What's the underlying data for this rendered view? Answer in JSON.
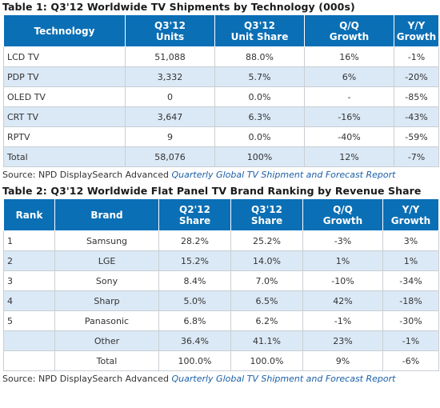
{
  "table1": {
    "title": "Table 1: Q3'12 Worldwide TV Shipments by Technology (000s)",
    "headers": [
      [
        "Technology"
      ],
      [
        "Q3'12",
        "Units"
      ],
      [
        "Q3'12",
        "Unit Share"
      ],
      [
        "Q/Q",
        "Growth"
      ],
      [
        "Y/Y",
        "Growth"
      ]
    ],
    "rows": [
      [
        "LCD TV",
        "51,088",
        "88.0%",
        "16%",
        "-1%"
      ],
      [
        "PDP TV",
        "3,332",
        "5.7%",
        "6%",
        "-20%"
      ],
      [
        "OLED TV",
        "0",
        "0.0%",
        "-",
        "-85%"
      ],
      [
        "CRT TV",
        "3,647",
        "6.3%",
        "-16%",
        "-43%"
      ],
      [
        "RPTV",
        "9",
        "0.0%",
        "-40%",
        "-59%"
      ],
      [
        "Total",
        "58,076",
        "100%",
        "12%",
        "-7%"
      ]
    ],
    "source_prefix": "Source: NPD DisplaySearch Advanced ",
    "source_report": "Quarterly Global TV Shipment and Forecast Report"
  },
  "table2": {
    "title": "Table 2: Q3'12 Worldwide Flat Panel TV Brand Ranking by Revenue Share",
    "headers": [
      [
        "Rank"
      ],
      [
        "Brand"
      ],
      [
        "Q2'12",
        "Share"
      ],
      [
        "Q3'12",
        "Share"
      ],
      [
        "Q/Q",
        "Growth"
      ],
      [
        "Y/Y",
        "Growth"
      ]
    ],
    "rows": [
      [
        "1",
        "Samsung",
        "28.2%",
        "25.2%",
        "-3%",
        "3%"
      ],
      [
        "2",
        "LGE",
        "15.2%",
        "14.0%",
        "1%",
        "1%"
      ],
      [
        "3",
        "Sony",
        "8.4%",
        "7.0%",
        "-10%",
        "-34%"
      ],
      [
        "4",
        "Sharp",
        "5.0%",
        "6.5%",
        "42%",
        "-18%"
      ],
      [
        "5",
        "Panasonic",
        "6.8%",
        "6.2%",
        "-1%",
        "-30%"
      ],
      [
        "",
        "Other",
        "36.4%",
        "41.1%",
        "23%",
        "-1%"
      ],
      [
        "",
        "Total",
        "100.0%",
        "100.0%",
        "9%",
        "-6%"
      ]
    ],
    "source_prefix": "Source: NPD DisplaySearch Advanced ",
    "source_report": "Quarterly Global TV Shipment and Forecast Report"
  },
  "colors": {
    "header_bg": "#0a6fb5",
    "alt_row": "#dbe9f6",
    "link": "#1a5fa8"
  }
}
